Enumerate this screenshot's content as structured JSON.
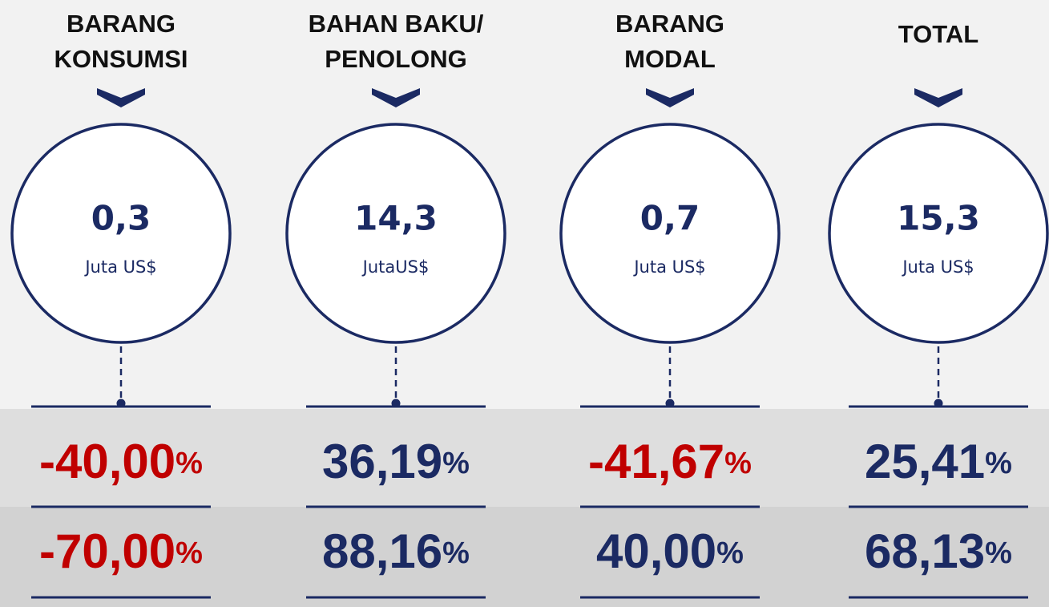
{
  "columns": [
    {
      "title": [
        "BARANG",
        "KONSUMSI"
      ],
      "value": "0,3",
      "unit": "Juta US$",
      "change_1": {
        "value": "-40,00",
        "unit": "%"
      },
      "change_2": {
        "value": "-70,00",
        "unit": "%"
      }
    },
    {
      "title": [
        "BAHAN BAKU/",
        "PENOLONG"
      ],
      "value": "14,3",
      "unit": "JutaUS$",
      "change_1": {
        "value": "36,19",
        "unit": "%"
      },
      "change_2": {
        "value": "88,16",
        "unit": "%"
      }
    },
    {
      "title": [
        "BARANG",
        "MODAL"
      ],
      "value": "0,7",
      "unit": "Juta US$",
      "change_1": {
        "value": "-41,67",
        "unit": "%"
      },
      "change_2": {
        "value": "40,00",
        "unit": "%"
      }
    },
    {
      "title": [
        "TOTAL"
      ],
      "value": "15,3",
      "unit": "Juta US$",
      "change_1": {
        "value": "25,41",
        "unit": "%"
      },
      "change_2": {
        "value": "68,13",
        "unit": "%"
      }
    }
  ]
}
